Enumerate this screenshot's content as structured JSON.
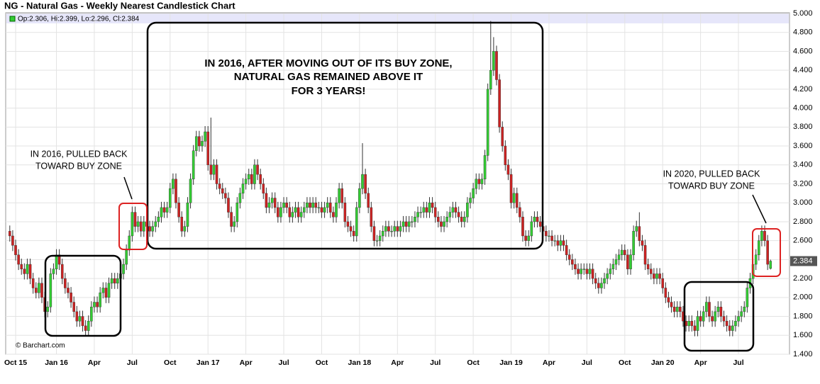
{
  "chart_data": {
    "type": "candlestick",
    "title": "NG - Natural Gas - Weekly Nearest Candlestick Chart",
    "legend_label": "Op:2.306, Hi:2.399, Lo:2.296, Cl:2.384",
    "credit": "© Barchart.com",
    "annotations": {
      "main": [
        "IN 2016, AFTER MOVING OUT OF ITS BUY ZONE,",
        "NATURAL GAS REMAINED ABOVE IT",
        "FOR 3 YEARS!"
      ],
      "left": [
        "IN 2016, PULLED BACK",
        "TOWARD BUY ZONE"
      ],
      "right": [
        "IN 2020, PULLED BACK",
        "TOWARD BUY ZONE"
      ]
    },
    "up_color": "#33cc33",
    "down_color": "#cc2222",
    "grid": true,
    "ylim": [
      1.4,
      5.0
    ],
    "yticks": [
      {
        "value": 1.4,
        "label": "1.400"
      },
      {
        "value": 1.6,
        "label": "1.600"
      },
      {
        "value": 1.8,
        "label": "1.800"
      },
      {
        "value": 2.0,
        "label": "2.000"
      },
      {
        "value": 2.2,
        "label": "2.200"
      },
      {
        "value": 2.4,
        "label": "2.400"
      },
      {
        "value": 2.6,
        "label": "2.600"
      },
      {
        "value": 2.8,
        "label": "2.800"
      },
      {
        "value": 3.0,
        "label": "3.000"
      },
      {
        "value": 3.2,
        "label": "3.200"
      },
      {
        "value": 3.4,
        "label": "3.400"
      },
      {
        "value": 3.6,
        "label": "3.600"
      },
      {
        "value": 3.8,
        "label": "3.800"
      },
      {
        "value": 4.0,
        "label": "4.000"
      },
      {
        "value": 4.2,
        "label": "4.200"
      },
      {
        "value": 4.4,
        "label": "4.400"
      },
      {
        "value": 4.6,
        "label": "4.600"
      },
      {
        "value": 4.8,
        "label": "4.800"
      },
      {
        "value": 5.0,
        "label": "5.000"
      }
    ],
    "categories": [
      null,
      null,
      "Oct 15",
      null,
      null,
      null,
      null,
      null,
      null,
      null,
      null,
      null,
      null,
      null,
      null,
      null,
      "Jan 16",
      null,
      null,
      null,
      null,
      null,
      null,
      null,
      null,
      null,
      null,
      null,
      null,
      "Apr",
      null,
      null,
      null,
      null,
      null,
      null,
      null,
      null,
      null,
      null,
      null,
      null,
      "Jul",
      null,
      null,
      null,
      null,
      null,
      null,
      null,
      null,
      null,
      null,
      null,
      null,
      "Oct",
      null,
      null,
      null,
      null,
      null,
      null,
      null,
      null,
      null,
      null,
      null,
      null,
      "Jan 17",
      null,
      null,
      null,
      null,
      null,
      null,
      null,
      null,
      null,
      null,
      null,
      null,
      "Apr",
      null,
      null,
      null,
      null,
      null,
      null,
      null,
      null,
      null,
      null,
      null,
      null,
      "Jul",
      null,
      null,
      null,
      null,
      null,
      null,
      null,
      null,
      null,
      null,
      null,
      null,
      "Oct",
      null,
      null,
      null,
      null,
      null,
      null,
      null,
      null,
      null,
      null,
      null,
      null,
      "Jan 18",
      null,
      null,
      null,
      null,
      null,
      null,
      null,
      null,
      null,
      null,
      null,
      null,
      "Apr",
      null,
      null,
      null,
      null,
      null,
      null,
      null,
      null,
      null,
      null,
      null,
      null,
      "Jul",
      null,
      null,
      null,
      null,
      null,
      null,
      null,
      null,
      null,
      null,
      null,
      null,
      "Oct",
      null,
      null,
      null,
      null,
      null,
      null,
      null,
      null,
      null,
      null,
      null,
      null,
      "Jan 19",
      null,
      null,
      null,
      null,
      null,
      null,
      null,
      null,
      null,
      null,
      null,
      null,
      "Apr",
      null,
      null,
      null,
      null,
      null,
      null,
      null,
      null,
      null,
      null,
      null,
      null,
      "Jul",
      null,
      null,
      null,
      null,
      null,
      null,
      null,
      null,
      null,
      null,
      null,
      null,
      "Oct",
      null,
      null,
      null,
      null,
      null,
      null,
      null,
      null,
      null,
      null,
      null,
      null,
      "Jan 20",
      null,
      null,
      null,
      null,
      null,
      null,
      null,
      null,
      null,
      null,
      null,
      null,
      "Apr",
      null,
      null,
      null,
      null,
      null,
      null,
      null,
      null,
      null,
      null,
      null,
      null,
      "Jul",
      null,
      null,
      null,
      null,
      null,
      null,
      null,
      null,
      null,
      null,
      null
    ],
    "open": [
      2.7,
      2.65,
      2.55,
      2.45,
      2.35,
      2.3,
      2.25,
      2.35,
      2.2,
      2.1,
      2.05,
      2.15,
      2.0,
      1.85,
      1.9,
      2.25,
      2.3,
      2.45,
      2.35,
      2.2,
      2.1,
      2.05,
      1.95,
      1.85,
      1.75,
      1.8,
      1.7,
      1.65,
      1.75,
      1.9,
      1.95,
      1.9,
      2.05,
      2.1,
      2.0,
      2.15,
      2.2,
      2.15,
      2.2,
      2.25,
      2.35,
      2.5,
      2.65,
      2.9,
      2.75,
      2.8,
      2.7,
      2.8,
      2.75,
      2.7,
      2.75,
      2.8,
      2.85,
      2.95,
      2.9,
      2.95,
      3.15,
      3.25,
      3.0,
      2.85,
      2.7,
      2.75,
      3.0,
      3.25,
      3.55,
      3.7,
      3.6,
      3.65,
      3.75,
      3.4,
      3.3,
      3.4,
      3.2,
      3.15,
      3.1,
      3.05,
      2.9,
      2.75,
      2.8,
      3.0,
      3.1,
      3.2,
      3.25,
      3.3,
      3.2,
      3.4,
      3.3,
      3.2,
      3.1,
      2.95,
      3.0,
      3.05,
      2.95,
      2.85,
      2.95,
      3.0,
      2.95,
      2.85,
      2.9,
      2.95,
      2.85,
      2.9,
      2.95,
      3.0,
      2.95,
      3.0,
      2.95,
      2.95,
      2.9,
      2.95,
      3.0,
      2.9,
      2.85,
      3.0,
      3.15,
      3.0,
      2.8,
      2.75,
      2.7,
      2.65,
      2.95,
      3.15,
      3.3,
      3.1,
      2.95,
      2.75,
      2.6,
      2.6,
      2.65,
      2.7,
      2.75,
      2.7,
      2.7,
      2.75,
      2.7,
      2.75,
      2.8,
      2.75,
      2.8,
      2.8,
      2.85,
      2.9,
      2.9,
      2.95,
      2.9,
      3.0,
      2.95,
      2.85,
      2.8,
      2.75,
      2.8,
      2.85,
      2.9,
      2.95,
      2.9,
      2.85,
      2.8,
      2.85,
      3.0,
      3.05,
      3.15,
      3.25,
      3.2,
      3.25,
      3.5,
      4.2,
      4.4,
      4.6,
      4.3,
      3.8,
      3.6,
      3.4,
      3.3,
      3.0,
      3.1,
      2.95,
      2.85,
      2.65,
      2.6,
      2.65,
      2.8,
      2.85,
      2.8,
      2.75,
      2.7,
      2.65,
      2.65,
      2.6,
      2.6,
      2.55,
      2.6,
      2.55,
      2.45,
      2.4,
      2.35,
      2.3,
      2.25,
      2.3,
      2.3,
      2.25,
      2.3,
      2.2,
      2.15,
      2.1,
      2.15,
      2.2,
      2.25,
      2.3,
      2.35,
      2.4,
      2.45,
      2.5,
      2.45,
      2.3,
      2.45,
      2.7,
      2.75,
      2.6,
      2.55,
      2.35,
      2.3,
      2.25,
      2.2,
      2.25,
      2.2,
      2.1,
      2.0,
      1.95,
      1.9,
      1.85,
      1.9,
      1.85,
      1.75,
      1.7,
      1.75,
      1.7,
      1.65,
      1.8,
      1.75,
      1.85,
      1.95,
      1.8,
      1.75,
      1.85,
      1.9,
      1.8,
      1.75,
      1.7,
      1.65,
      1.7,
      1.75,
      1.8,
      1.85,
      1.9,
      2.1,
      2.2,
      2.35,
      2.45,
      2.6,
      2.7,
      2.6,
      2.306
    ],
    "high": [
      2.76,
      2.71,
      2.61,
      2.51,
      2.41,
      2.36,
      2.41,
      2.41,
      2.26,
      2.16,
      2.21,
      2.21,
      2.06,
      1.96,
      2.31,
      2.36,
      2.51,
      2.51,
      2.41,
      2.26,
      2.16,
      2.11,
      2.01,
      1.91,
      1.86,
      1.86,
      1.76,
      1.81,
      1.96,
      2.01,
      2.01,
      2.11,
      2.16,
      2.16,
      2.21,
      2.26,
      2.26,
      2.26,
      2.31,
      2.41,
      2.56,
      2.71,
      2.96,
      2.96,
      2.86,
      2.86,
      2.86,
      2.86,
      2.81,
      2.81,
      2.86,
      2.91,
      3.01,
      3.01,
      3.01,
      3.21,
      3.31,
      3.31,
      3.06,
      2.91,
      2.81,
      3.06,
      3.31,
      3.61,
      3.76,
      3.76,
      3.71,
      3.81,
      3.81,
      3.9,
      3.46,
      3.46,
      3.26,
      3.21,
      3.16,
      3.11,
      2.96,
      2.86,
      3.06,
      3.16,
      3.26,
      3.31,
      3.36,
      3.36,
      3.46,
      3.46,
      3.36,
      3.26,
      3.16,
      3.06,
      3.11,
      3.11,
      3.01,
      3.01,
      3.06,
      3.06,
      3.01,
      2.96,
      3.01,
      3.01,
      2.96,
      3.01,
      3.06,
      3.06,
      3.06,
      3.06,
      3.01,
      3.01,
      3.01,
      3.06,
      3.06,
      2.96,
      3.06,
      3.21,
      3.21,
      3.06,
      2.86,
      2.81,
      2.76,
      3.01,
      3.21,
      3.63,
      3.36,
      3.16,
      3.01,
      2.81,
      2.66,
      2.71,
      2.76,
      2.81,
      2.81,
      2.76,
      2.81,
      2.81,
      2.81,
      2.86,
      2.86,
      2.86,
      2.86,
      2.91,
      2.96,
      2.96,
      3.01,
      3.01,
      3.06,
      3.06,
      3.01,
      2.91,
      2.86,
      2.86,
      2.91,
      2.96,
      3.01,
      3.01,
      2.96,
      2.91,
      2.91,
      3.06,
      3.11,
      3.21,
      3.31,
      3.31,
      3.31,
      3.56,
      4.26,
      4.92,
      4.75,
      4.66,
      4.36,
      3.86,
      3.66,
      3.46,
      3.36,
      3.16,
      3.16,
      3.01,
      2.91,
      2.71,
      2.71,
      2.86,
      2.91,
      2.91,
      2.86,
      2.81,
      2.76,
      2.71,
      2.71,
      2.66,
      2.66,
      2.66,
      2.66,
      2.61,
      2.51,
      2.46,
      2.41,
      2.36,
      2.36,
      2.36,
      2.36,
      2.36,
      2.36,
      2.26,
      2.21,
      2.21,
      2.26,
      2.31,
      2.36,
      2.41,
      2.46,
      2.51,
      2.56,
      2.56,
      2.51,
      2.51,
      2.76,
      2.81,
      2.9,
      2.66,
      2.61,
      2.41,
      2.36,
      2.31,
      2.31,
      2.31,
      2.26,
      2.16,
      2.06,
      2.01,
      1.96,
      1.96,
      1.96,
      1.91,
      1.81,
      1.81,
      1.81,
      1.76,
      1.86,
      1.86,
      1.91,
      2.01,
      2.01,
      1.86,
      1.91,
      1.96,
      1.96,
      1.86,
      1.81,
      1.76,
      1.76,
      1.81,
      1.86,
      1.91,
      1.96,
      2.16,
      2.26,
      2.41,
      2.51,
      2.66,
      2.76,
      2.76,
      2.66,
      2.399
    ],
    "low": [
      2.59,
      2.49,
      2.39,
      2.29,
      2.24,
      2.19,
      2.19,
      2.14,
      2.04,
      1.99,
      1.99,
      1.94,
      1.79,
      1.79,
      1.84,
      2.19,
      2.24,
      2.29,
      2.14,
      2.04,
      1.99,
      1.89,
      1.79,
      1.69,
      1.69,
      1.64,
      1.59,
      1.59,
      1.69,
      1.84,
      1.84,
      1.84,
      1.99,
      1.94,
      1.94,
      2.09,
      2.09,
      2.09,
      2.14,
      2.19,
      2.29,
      2.44,
      2.59,
      2.69,
      2.69,
      2.64,
      2.64,
      2.69,
      2.64,
      2.64,
      2.69,
      2.74,
      2.79,
      2.84,
      2.84,
      2.89,
      3.09,
      2.94,
      2.79,
      2.64,
      2.64,
      2.69,
      2.94,
      3.19,
      3.49,
      3.54,
      3.54,
      3.59,
      3.34,
      3.24,
      3.24,
      3.14,
      3.09,
      3.04,
      2.99,
      2.84,
      2.69,
      2.69,
      2.74,
      2.94,
      3.04,
      3.14,
      3.19,
      3.14,
      3.14,
      3.24,
      3.14,
      3.04,
      2.89,
      2.89,
      2.94,
      2.89,
      2.79,
      2.79,
      2.89,
      2.89,
      2.79,
      2.79,
      2.84,
      2.79,
      2.79,
      2.84,
      2.89,
      2.89,
      2.89,
      2.89,
      2.89,
      2.84,
      2.84,
      2.89,
      2.84,
      2.79,
      2.79,
      2.94,
      2.94,
      2.74,
      2.69,
      2.64,
      2.59,
      2.59,
      2.89,
      3.09,
      3.04,
      2.89,
      2.69,
      2.54,
      2.54,
      2.54,
      2.59,
      2.64,
      2.64,
      2.64,
      2.64,
      2.64,
      2.64,
      2.69,
      2.69,
      2.69,
      2.74,
      2.74,
      2.79,
      2.84,
      2.84,
      2.84,
      2.84,
      2.89,
      2.79,
      2.74,
      2.69,
      2.69,
      2.74,
      2.79,
      2.84,
      2.84,
      2.79,
      2.74,
      2.74,
      2.79,
      2.94,
      2.99,
      3.09,
      3.14,
      3.14,
      3.19,
      3.44,
      4.14,
      4.34,
      4.24,
      3.74,
      3.54,
      3.34,
      3.24,
      2.94,
      2.94,
      2.89,
      2.79,
      2.59,
      2.54,
      2.54,
      2.59,
      2.74,
      2.74,
      2.69,
      2.64,
      2.59,
      2.59,
      2.54,
      2.54,
      2.49,
      2.49,
      2.49,
      2.39,
      2.34,
      2.29,
      2.24,
      2.19,
      2.19,
      2.24,
      2.19,
      2.19,
      2.14,
      2.09,
      2.04,
      2.04,
      2.09,
      2.14,
      2.19,
      2.24,
      2.29,
      2.34,
      2.39,
      2.39,
      2.24,
      2.24,
      2.39,
      2.64,
      2.54,
      2.49,
      2.29,
      2.24,
      2.19,
      2.14,
      2.14,
      2.14,
      2.04,
      1.94,
      1.89,
      1.84,
      1.79,
      1.79,
      1.79,
      1.69,
      1.64,
      1.64,
      1.64,
      1.59,
      1.59,
      1.69,
      1.69,
      1.79,
      1.74,
      1.69,
      1.69,
      1.79,
      1.74,
      1.69,
      1.64,
      1.59,
      1.59,
      1.64,
      1.69,
      1.74,
      1.79,
      1.84,
      2.04,
      2.14,
      2.29,
      2.39,
      2.54,
      2.54,
      2.29,
      2.296
    ],
    "close": [
      2.65,
      2.55,
      2.45,
      2.35,
      2.3,
      2.25,
      2.35,
      2.2,
      2.1,
      2.05,
      2.15,
      2.0,
      1.85,
      1.9,
      2.25,
      2.3,
      2.45,
      2.35,
      2.2,
      2.1,
      2.05,
      1.95,
      1.85,
      1.75,
      1.8,
      1.7,
      1.65,
      1.75,
      1.9,
      1.95,
      1.9,
      2.05,
      2.1,
      2.0,
      2.15,
      2.2,
      2.15,
      2.2,
      2.25,
      2.35,
      2.5,
      2.65,
      2.9,
      2.75,
      2.8,
      2.7,
      2.8,
      2.75,
      2.7,
      2.75,
      2.8,
      2.85,
      2.95,
      2.9,
      2.95,
      3.15,
      3.25,
      3.0,
      2.85,
      2.7,
      2.75,
      3.0,
      3.25,
      3.55,
      3.7,
      3.6,
      3.65,
      3.75,
      3.4,
      3.3,
      3.4,
      3.2,
      3.15,
      3.1,
      3.05,
      2.9,
      2.75,
      2.8,
      3.0,
      3.1,
      3.2,
      3.25,
      3.3,
      3.2,
      3.4,
      3.3,
      3.2,
      3.1,
      2.95,
      3.0,
      3.05,
      2.95,
      2.85,
      2.95,
      3.0,
      2.95,
      2.85,
      2.9,
      2.95,
      2.85,
      2.9,
      2.95,
      3.0,
      2.95,
      3.0,
      2.95,
      2.95,
      2.9,
      2.95,
      3.0,
      2.9,
      2.85,
      3.0,
      3.15,
      3.0,
      2.8,
      2.75,
      2.7,
      2.65,
      2.95,
      3.15,
      3.3,
      3.1,
      2.95,
      2.75,
      2.6,
      2.6,
      2.65,
      2.7,
      2.75,
      2.7,
      2.7,
      2.75,
      2.7,
      2.75,
      2.8,
      2.75,
      2.8,
      2.8,
      2.85,
      2.9,
      2.9,
      2.95,
      2.9,
      3.0,
      2.95,
      2.85,
      2.8,
      2.75,
      2.8,
      2.85,
      2.9,
      2.95,
      2.9,
      2.85,
      2.8,
      2.85,
      3.0,
      3.05,
      3.15,
      3.25,
      3.2,
      3.25,
      3.5,
      4.2,
      4.4,
      4.6,
      4.3,
      3.8,
      3.6,
      3.4,
      3.3,
      3.0,
      3.1,
      2.95,
      2.85,
      2.65,
      2.6,
      2.65,
      2.8,
      2.85,
      2.8,
      2.75,
      2.7,
      2.65,
      2.65,
      2.6,
      2.6,
      2.55,
      2.6,
      2.55,
      2.45,
      2.4,
      2.35,
      2.3,
      2.25,
      2.3,
      2.3,
      2.25,
      2.3,
      2.2,
      2.15,
      2.1,
      2.15,
      2.2,
      2.25,
      2.3,
      2.35,
      2.4,
      2.45,
      2.5,
      2.45,
      2.3,
      2.45,
      2.7,
      2.75,
      2.6,
      2.55,
      2.35,
      2.3,
      2.25,
      2.2,
      2.25,
      2.2,
      2.1,
      2.0,
      1.95,
      1.9,
      1.85,
      1.9,
      1.85,
      1.75,
      1.7,
      1.75,
      1.7,
      1.65,
      1.8,
      1.75,
      1.85,
      1.95,
      1.8,
      1.75,
      1.85,
      1.9,
      1.8,
      1.75,
      1.7,
      1.65,
      1.7,
      1.75,
      1.8,
      1.85,
      1.9,
      2.1,
      2.2,
      2.35,
      2.45,
      2.6,
      2.7,
      2.6,
      2.35,
      2.384
    ]
  }
}
